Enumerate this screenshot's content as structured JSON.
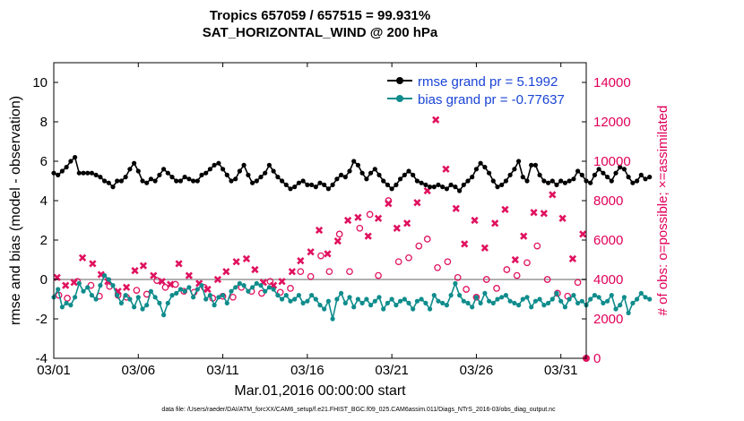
{
  "colors": {
    "rmse": "#000000",
    "bias": "#0f8c8c",
    "obs": "#e0115f",
    "zero_line": "#b0b0b0",
    "legend_text": "#1a44d6"
  },
  "chart_data": {
    "type": "line",
    "title_line1": "Tropics 657059 / 657515 = 99.931%",
    "title_line2": "SAT_HORIZONTAL_WIND @ 200 hPa",
    "xlabel": "Mar.01,2016 00:00:00 start",
    "ylabel": "rmse and bias (model - observation)",
    "y2label": "# of obs: o=possible; ×=assimilated",
    "footer": "data file: /Users/raeder/DAI/ATM_forcXX/CAM6_setup/f.e21.FHIST_BGC.f09_025.CAM6assim.011/Diags_NTrS_2016-03/obs_diag_output.nc",
    "xlim": [
      0,
      31.5
    ],
    "ylim": [
      -4,
      11
    ],
    "y2lim": [
      0,
      15000
    ],
    "x_ticks": [
      0,
      5,
      10,
      15,
      20,
      25,
      30
    ],
    "x_tick_labels": [
      "03/01",
      "03/06",
      "03/11",
      "03/16",
      "03/21",
      "03/26",
      "03/31"
    ],
    "y_ticks": [
      -4,
      -2,
      0,
      2,
      4,
      6,
      8,
      10
    ],
    "y_tick_labels": [
      "-4",
      "-2",
      "0",
      "2",
      "4",
      "6",
      "8",
      "10"
    ],
    "y2_ticks": [
      0,
      2000,
      4000,
      6000,
      8000,
      10000,
      12000,
      14000
    ],
    "y2_tick_labels": [
      "0",
      "2000",
      "4000",
      "6000",
      "8000",
      "10000",
      "12000",
      "14000"
    ],
    "legend": [
      {
        "label": "rmse grand pr = 5.1992",
        "series": "rmse"
      },
      {
        "label": "bias grand pr = -0.77637",
        "series": "bias"
      }
    ],
    "series": [
      {
        "name": "rmse",
        "x_start": 0,
        "x_step": 0.25,
        "values": [
          5.4,
          5.3,
          5.5,
          5.7,
          6.0,
          6.2,
          5.4,
          5.4,
          5.4,
          5.4,
          5.3,
          5.2,
          5.0,
          4.9,
          4.7,
          5.0,
          5.0,
          5.2,
          5.6,
          5.9,
          5.5,
          5.0,
          4.9,
          5.1,
          5.0,
          5.3,
          5.6,
          5.4,
          5.2,
          5.0,
          5.0,
          5.2,
          5.1,
          5.0,
          5.0,
          5.3,
          5.4,
          5.6,
          5.8,
          5.9,
          5.6,
          5.3,
          5.0,
          5.1,
          5.5,
          5.8,
          5.3,
          4.9,
          5.0,
          5.2,
          5.4,
          5.8,
          5.5,
          5.2,
          5.0,
          4.8,
          4.6,
          4.7,
          4.9,
          5.0,
          4.8,
          4.8,
          4.7,
          4.9,
          4.8,
          4.6,
          4.8,
          5.1,
          5.3,
          5.2,
          5.5,
          6.0,
          5.8,
          5.4,
          5.1,
          5.4,
          5.6,
          5.3,
          5.0,
          4.8,
          4.6,
          4.8,
          5.1,
          5.3,
          5.5,
          5.3,
          5.0,
          4.9,
          4.8,
          4.7,
          4.7,
          4.8,
          4.7,
          4.6,
          4.8,
          4.7,
          4.5,
          4.8,
          5.0,
          5.2,
          5.6,
          5.9,
          5.7,
          5.4,
          5.0,
          4.7,
          4.8,
          5.0,
          5.3,
          5.6,
          6.0,
          5.2,
          5.0,
          5.8,
          5.8,
          5.3,
          5.0,
          4.9,
          5.0,
          4.8,
          5.0,
          4.9,
          5.0,
          5.1,
          5.5,
          5.3,
          5.0,
          4.9,
          5.3,
          5.6,
          5.4,
          5.2,
          5.0,
          5.4,
          5.7,
          5.6,
          5.2,
          4.9,
          5.0,
          5.3,
          5.1,
          5.2
        ],
        "line_color": "#000000"
      },
      {
        "name": "bias",
        "x_start": 0,
        "x_step": 0.25,
        "values": [
          -0.9,
          -0.5,
          -1.4,
          -1.2,
          -1.3,
          -0.9,
          -0.2,
          -0.6,
          -0.4,
          -0.8,
          -1.0,
          -0.3,
          0.2,
          0.0,
          -0.3,
          -0.8,
          -1.2,
          -0.8,
          -1.0,
          -1.4,
          -0.9,
          -1.5,
          -1.3,
          -0.6,
          -0.9,
          -1.2,
          -1.8,
          -1.2,
          -0.8,
          -0.7,
          -0.5,
          -0.6,
          -0.4,
          -0.9,
          -0.5,
          -0.3,
          -1.0,
          -0.8,
          -1.3,
          -0.9,
          -0.8,
          -1.2,
          -0.6,
          -0.4,
          -0.2,
          -0.3,
          -0.6,
          -0.4,
          -0.2,
          -0.3,
          -0.6,
          -0.4,
          -0.5,
          -0.8,
          -1.0,
          -0.8,
          -1.1,
          -1.0,
          -0.8,
          -1.2,
          -1.1,
          -0.8,
          -1.0,
          -1.3,
          -1.5,
          -1.1,
          -2.0,
          -1.0,
          -0.7,
          -1.2,
          -0.9,
          -1.4,
          -1.0,
          -1.2,
          -1.0,
          -1.3,
          -1.1,
          -0.9,
          -1.5,
          -1.2,
          -1.0,
          -1.3,
          -1.1,
          -1.0,
          -1.2,
          -1.5,
          -1.1,
          -1.0,
          -1.2,
          -1.5,
          -0.8,
          -1.1,
          -1.2,
          -1.3,
          -0.8,
          -0.2,
          -0.8,
          -1.1,
          -1.2,
          -1.4,
          -0.9,
          -1.2,
          -0.7,
          -1.1,
          -1.2,
          -1.0,
          -0.9,
          -0.8,
          -1.1,
          -1.2,
          -1.3,
          -1.0,
          -0.9,
          -1.4,
          -1.1,
          -1.0,
          -1.3,
          -1.2,
          -1.0,
          -0.7,
          -1.1,
          -1.4,
          -1.0,
          -0.8,
          -1.2,
          -1.1,
          -1.3,
          -1.0,
          -0.8,
          -0.9,
          -1.2,
          -1.1,
          -0.8,
          -1.5,
          -1.3,
          -0.9,
          -1.7,
          -1.2,
          -1.0,
          -0.7,
          -0.9,
          -1.0
        ],
        "line_color": "#0f8c8c"
      },
      {
        "name": "obs_possible",
        "x": [
          0.3,
          0.8,
          1.4,
          2.2,
          2.7,
          3.3,
          3.8,
          4.3,
          4.9,
          5.5,
          6.1,
          6.6,
          7.2,
          7.7,
          8.3,
          8.9,
          9.4,
          10.0,
          10.6,
          11.1,
          11.7,
          12.3,
          12.8,
          13.4,
          14.0,
          14.6,
          15.2,
          15.8,
          16.3,
          16.9,
          17.5,
          18.1,
          18.7,
          19.2,
          19.8,
          20.4,
          21.0,
          21.6,
          22.1,
          22.7,
          23.3,
          23.9,
          24.4,
          25.0,
          25.6,
          26.2,
          26.8,
          27.4,
          28.0,
          28.6,
          29.2,
          29.8,
          30.4,
          31.0
        ],
        "values": [
          3200,
          3050,
          3900,
          3700,
          3150,
          3650,
          3200,
          3100,
          3450,
          3250,
          3950,
          3600,
          3750,
          3400,
          3350,
          3600,
          3050,
          3150,
          3100,
          3600,
          3400,
          3300,
          3900,
          3350,
          3550,
          4400,
          4150,
          5200,
          4400,
          6300,
          4400,
          6600,
          7300,
          4200,
          8000,
          4900,
          5100,
          5700,
          6050,
          4600,
          4900,
          4100,
          3500,
          3100,
          4000,
          3550,
          4500,
          4200,
          4850,
          5700,
          4000,
          3300,
          3150,
          3850
        ],
        "color": "#e0115f"
      },
      {
        "name": "obs_assimilated",
        "x": [
          0.2,
          0.7,
          1.2,
          1.7,
          2.3,
          2.8,
          3.2,
          3.8,
          4.3,
          4.8,
          5.3,
          5.9,
          6.4,
          6.9,
          7.4,
          8.0,
          8.6,
          9.1,
          9.7,
          10.2,
          10.8,
          11.4,
          11.9,
          12.4,
          13.0,
          13.5,
          14.1,
          14.6,
          15.2,
          15.7,
          16.2,
          16.8,
          17.4,
          18.0,
          18.6,
          19.2,
          19.8,
          20.3,
          20.9,
          21.5,
          22.1,
          22.6,
          23.2,
          23.8,
          24.3,
          24.9,
          25.5,
          26.1,
          26.7,
          27.3,
          27.8,
          28.4,
          29.0,
          29.5,
          30.1,
          30.7,
          31.3
        ],
        "values": [
          4100,
          3700,
          3850,
          5100,
          4800,
          4250,
          3900,
          3400,
          3600,
          4450,
          4700,
          4200,
          3900,
          3750,
          4800,
          4200,
          3800,
          3500,
          4000,
          4400,
          4900,
          5050,
          4500,
          3850,
          3700,
          3900,
          4400,
          4950,
          5400,
          6500,
          5300,
          5950,
          7000,
          7150,
          6200,
          7100,
          7850,
          6600,
          6850,
          7900,
          8500,
          12100,
          9600,
          7600,
          5800,
          7000,
          5600,
          6850,
          7550,
          5000,
          6200,
          7400,
          7350,
          8300,
          7100,
          5050,
          6300
        ],
        "color": "#e0115f"
      }
    ]
  }
}
